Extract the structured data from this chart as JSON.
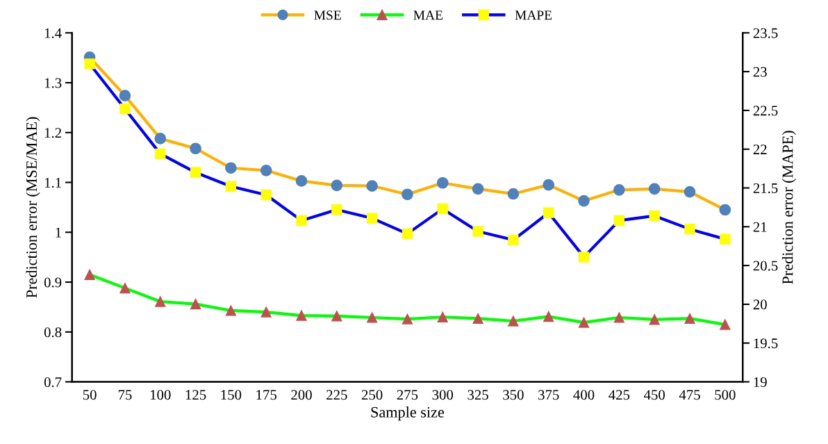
{
  "chart_data": {
    "type": "line",
    "xlabel": "Sample size",
    "ylabel": "Prediction error (MSE/MAE)",
    "y2label": "Prediction error (MAPE)",
    "categories": [
      "50",
      "75",
      "100",
      "125",
      "150",
      "175",
      "200",
      "225",
      "250",
      "275",
      "300",
      "325",
      "350",
      "375",
      "400",
      "425",
      "450",
      "475",
      "500"
    ],
    "series": [
      {
        "name": "MSE",
        "color": "#ffb000",
        "colors": [
          "#4f81bd",
          "#4f81bd",
          "#4f81bd",
          "#4f81bd",
          "#4f81bd",
          "#4f81bd",
          "#4f81bd",
          "#4f81bd",
          "#4f81bd",
          "#4f81bd",
          "#4f81bd",
          "#4f81bd",
          "#4f81bd",
          "#4f81bd",
          "#4f81bd",
          "#4f81bd",
          "#4f81bd",
          "#4f81bd",
          "#4f81bd"
        ],
        "marker": "circle",
        "values": [
          1.351,
          1.274,
          1.188,
          1.168,
          1.129,
          1.124,
          1.103,
          1.094,
          1.093,
          1.076,
          1.099,
          1.087,
          1.077,
          1.095,
          1.063,
          1.085,
          1.087,
          1.081,
          1.045
        ]
      },
      {
        "name": "MAE",
        "color": "#00ff00",
        "colors": [
          "#c0504d",
          "#c0504d",
          "#c0504d",
          "#c0504d",
          "#c0504d",
          "#c0504d",
          "#c0504d",
          "#c0504d",
          "#c0504d",
          "#c0504d",
          "#c0504d",
          "#c0504d",
          "#c0504d",
          "#c0504d",
          "#c0504d",
          "#c0504d",
          "#c0504d",
          "#c0504d",
          "#c0504d"
        ],
        "marker": "triangle",
        "values": [
          0.915,
          0.888,
          0.861,
          0.856,
          0.843,
          0.84,
          0.833,
          0.832,
          0.829,
          0.826,
          0.83,
          0.827,
          0.822,
          0.831,
          0.819,
          0.829,
          0.825,
          0.827,
          0.815
        ]
      },
      {
        "name": "MAPE",
        "color": "#0000ff",
        "colors": [
          "#ffff00",
          "#ffff00",
          "#ffff00",
          "#ffff00",
          "#ffff00",
          "#ffff00",
          "#ffff00",
          "#ffff00",
          "#ffff00",
          "#ffff00",
          "#ffff00",
          "#ffff00",
          "#ffff00",
          "#ffff00",
          "#ffff00",
          "#ffff00",
          "#ffff00",
          "#ffff00",
          "#ffff00"
        ],
        "marker": "square",
        "axis": "y2",
        "values": [
          23.1,
          22.52,
          21.94,
          21.7,
          21.52,
          21.41,
          21.08,
          21.22,
          21.11,
          20.91,
          21.23,
          20.94,
          20.83,
          21.18,
          20.61,
          21.08,
          21.14,
          20.97,
          20.84
        ]
      }
    ],
    "ylim": [
      0.7,
      1.4
    ],
    "yticks": [
      {
        "value": 0.7,
        "label": "0.7"
      },
      {
        "value": 0.8,
        "label": "0.8"
      },
      {
        "value": 0.9,
        "label": "0.9"
      },
      {
        "value": 1.0,
        "label": "1"
      },
      {
        "value": 1.1,
        "label": "1.1"
      },
      {
        "value": 1.2,
        "label": "1.2"
      },
      {
        "value": 1.3,
        "label": "1.3"
      },
      {
        "value": 1.4,
        "label": "1.4"
      }
    ],
    "y2lim": [
      19,
      23.5
    ],
    "y2ticks": [
      19,
      19.5,
      20,
      20.5,
      21,
      21.5,
      22,
      22.5,
      23,
      23.5
    ],
    "grid": false,
    "legend": "top",
    "line_style": "solid"
  }
}
